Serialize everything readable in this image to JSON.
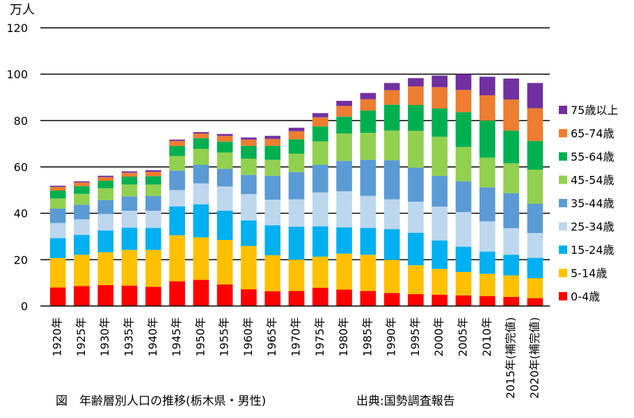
{
  "chart_data": {
    "type": "bar",
    "stacked": true,
    "unit_label": "万人",
    "ylim": [
      0,
      120
    ],
    "yticks": [
      0,
      20,
      40,
      60,
      80,
      100,
      120
    ],
    "grid": true,
    "legend_position": "right",
    "categories": [
      "1920年",
      "1925年",
      "1930年",
      "1935年",
      "1940年",
      "1945年",
      "1950年",
      "1955年",
      "1960年",
      "1965年",
      "1970年",
      "1975年",
      "1980年",
      "1985年",
      "1990年",
      "1995年",
      "2000年",
      "2005年",
      "2010年",
      "2015年(補完値)",
      "2020年(補完値)"
    ],
    "series": [
      {
        "name": "0-4歳",
        "color": "#ff0000",
        "values": [
          8.0,
          8.6,
          9.0,
          8.8,
          8.3,
          10.7,
          11.3,
          9.3,
          7.2,
          6.4,
          6.5,
          7.9,
          7.1,
          6.5,
          5.6,
          5.1,
          4.9,
          4.6,
          4.3,
          3.9,
          3.4
        ]
      },
      {
        "name": "5-14歳",
        "color": "#ffc000",
        "values": [
          12.7,
          13.5,
          14.2,
          15.4,
          15.9,
          19.8,
          18.3,
          19.2,
          18.7,
          15.5,
          13.5,
          13.4,
          15.5,
          15.6,
          14.3,
          12.5,
          11.1,
          10.1,
          9.6,
          9.3,
          8.6
        ]
      },
      {
        "name": "15-24歳",
        "color": "#00b0f0",
        "values": [
          8.6,
          8.6,
          9.4,
          9.6,
          9.5,
          12.5,
          14.3,
          12.6,
          11.0,
          12.9,
          14.2,
          13.1,
          11.3,
          11.6,
          13.3,
          14.0,
          12.3,
          10.9,
          9.6,
          8.9,
          8.8
        ]
      },
      {
        "name": "25-34歳",
        "color": "#bdd7ee",
        "values": [
          6.5,
          6.7,
          7.1,
          7.3,
          7.4,
          7.0,
          9.0,
          10.5,
          11.4,
          11.1,
          11.8,
          14.6,
          15.6,
          13.8,
          12.8,
          13.4,
          14.6,
          14.9,
          13.0,
          11.5,
          10.7
        ]
      },
      {
        "name": "35-44歳",
        "color": "#5b9bd5",
        "values": [
          6.2,
          6.3,
          6.0,
          6.2,
          6.4,
          8.4,
          8.0,
          7.6,
          8.3,
          10.3,
          11.8,
          11.9,
          13.1,
          15.6,
          16.9,
          14.7,
          13.2,
          13.3,
          14.7,
          15.1,
          12.6
        ]
      },
      {
        "name": "45-54歳",
        "color": "#92d050",
        "values": [
          4.4,
          4.7,
          5.1,
          5.1,
          4.9,
          6.3,
          6.9,
          7.0,
          7.0,
          6.9,
          7.9,
          10.1,
          11.8,
          11.6,
          12.8,
          15.9,
          16.9,
          14.8,
          12.8,
          12.9,
          14.7
        ]
      },
      {
        "name": "55-64歳",
        "color": "#00b050",
        "values": [
          3.4,
          3.3,
          3.2,
          3.4,
          3.6,
          4.3,
          4.6,
          4.7,
          5.5,
          6.0,
          6.2,
          6.5,
          7.3,
          9.6,
          11.1,
          11.1,
          12.2,
          15.0,
          16.0,
          14.1,
          12.4
        ]
      },
      {
        "name": "65-74歳",
        "color": "#ed7d31",
        "values": [
          1.6,
          1.6,
          1.6,
          1.7,
          1.9,
          2.2,
          2.0,
          2.5,
          2.7,
          3.0,
          3.5,
          3.9,
          4.6,
          4.9,
          6.3,
          8.0,
          9.2,
          9.6,
          10.9,
          13.4,
          14.1
        ]
      },
      {
        "name": "75歳以上",
        "color": "#7030a0",
        "values": [
          0.5,
          0.5,
          0.6,
          0.6,
          0.7,
          0.6,
          0.6,
          0.8,
          0.9,
          1.3,
          1.5,
          1.8,
          2.2,
          2.7,
          3.1,
          3.6,
          5.0,
          6.8,
          8.0,
          9.0,
          10.9
        ]
      }
    ]
  },
  "captions": {
    "figure_title": "図　年齢層別人口の推移(栃木県・男性)",
    "source": "出典:国勢調査報告"
  }
}
